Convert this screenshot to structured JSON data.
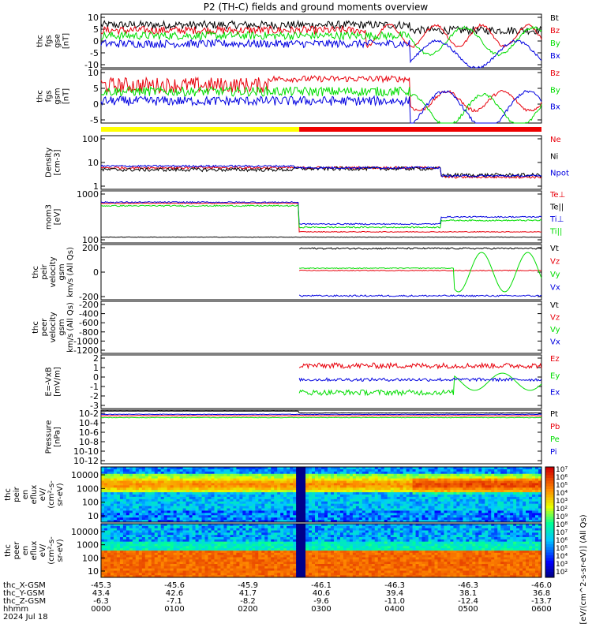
{
  "title": "P2 (TH-C) fields and ground moments overview",
  "colors": {
    "black": "#000000",
    "red": "#e8000b",
    "green": "#00dd00",
    "blue": "#0000e0",
    "yellow": "#ffff00",
    "barred": "#ee0000"
  },
  "chart_data": [
    {
      "type": "line",
      "id": "fgs_gse",
      "ylabel": [
        "thc",
        "fgs",
        "gse",
        "[nT]"
      ],
      "ylim": [
        -10,
        10
      ],
      "ticks": [
        "10",
        "5",
        "0",
        "-5",
        "-10"
      ],
      "legend": [
        "Bt",
        "Bz",
        "By",
        "Bx"
      ],
      "series_colors": [
        "black",
        "red",
        "green",
        "blue"
      ]
    },
    {
      "type": "line",
      "id": "fgs_gsm",
      "ylabel": [
        "thc",
        "fgs",
        "gsm",
        "[nT]"
      ],
      "ylim": [
        -7,
        10
      ],
      "ticks": [
        "10",
        "5",
        "0",
        "-5"
      ],
      "legend": [
        "Bz",
        "By",
        "Bx"
      ],
      "series_colors": [
        "red",
        "green",
        "blue"
      ]
    },
    {
      "type": "line",
      "id": "density",
      "ylabel": [
        "Density",
        "[cm-3]"
      ],
      "scale": "log",
      "ylim": [
        0.8,
        120
      ],
      "ticks": [
        "100",
        "10",
        "1"
      ],
      "legend": [
        "Ne",
        "Ni",
        "Npot"
      ],
      "series_colors": [
        "red",
        "black",
        "blue"
      ]
    },
    {
      "type": "line",
      "id": "temperature",
      "ylabel": [
        "mom3",
        "[eV]"
      ],
      "scale": "log",
      "ylim": [
        15,
        1500
      ],
      "ticks": [
        "1000",
        "100"
      ],
      "legend": [
        "Te⊥",
        "Te||",
        "Ti⊥",
        "Ti||"
      ],
      "series_colors": [
        "red",
        "black",
        "blue",
        "green"
      ]
    },
    {
      "type": "line",
      "id": "peir_velocity",
      "ylabel": [
        "thc",
        "peir",
        "velocity",
        "gsm",
        "km/s (All Qs)"
      ],
      "ylim": [
        -350,
        350
      ],
      "ticks": [
        "200",
        "0",
        "-200"
      ],
      "legend": [
        "Vt",
        "Vz",
        "Vy",
        "Vx"
      ],
      "series_colors": [
        "black",
        "red",
        "green",
        "blue"
      ]
    },
    {
      "type": "line",
      "id": "peer_velocity",
      "ylabel": [
        "thc",
        "peer",
        "velocity",
        "gsm",
        "km/s (All Qs)"
      ],
      "ylim": [
        -1300,
        0
      ],
      "ticks": [
        "-200",
        "-400",
        "-600",
        "-800",
        "-1000",
        "-1200"
      ],
      "legend": [
        "Vt",
        "Vz",
        "Vy",
        "Vx"
      ],
      "series_colors": [
        "black",
        "red",
        "green",
        "blue"
      ]
    },
    {
      "type": "line",
      "id": "efield",
      "ylabel": [
        "E=-VxB",
        "[mV/m]"
      ],
      "ylim": [
        -3,
        2
      ],
      "ticks": [
        "2",
        "1",
        "0",
        "-1",
        "-2",
        "-3"
      ],
      "legend": [
        "Ez",
        "Ey",
        "Ex"
      ],
      "series_colors": [
        "red",
        "green",
        "blue"
      ]
    },
    {
      "type": "line",
      "id": "pressure",
      "ylabel": [
        "Pressure",
        "[nPa]"
      ],
      "scale": "log",
      "ticks": [
        "10-2",
        "10-4",
        "10-6",
        "10-8",
        "10-10",
        "10-12"
      ],
      "legend": [
        "Pt",
        "Pb",
        "Pe",
        "Pi"
      ],
      "series_colors": [
        "black",
        "red",
        "green",
        "blue"
      ]
    },
    {
      "type": "heatmap",
      "id": "peir_eflux",
      "ylabel": [
        "thc",
        "peir",
        "en",
        "eflux",
        "eV/",
        "(cm²-s-",
        "sr-eV)"
      ],
      "ticks": [
        "10000",
        "1000",
        "100",
        "10"
      ]
    },
    {
      "type": "heatmap",
      "id": "peer_eflux",
      "ylabel": [
        "thc",
        "peer",
        "en",
        "eflux",
        "eV/",
        "(cm²-s-",
        "sr-eV)"
      ],
      "ticks": [
        "10000",
        "1000",
        "100",
        "10"
      ]
    }
  ],
  "colorbar": {
    "label": "[eV/(cm^2-s-sr-eV)] (All Qs)",
    "ticks": [
      "10⁷",
      "10⁶",
      "10⁵",
      "10⁴",
      "10³",
      "10²",
      "10⁹",
      "10⁸",
      "10⁷",
      "10⁶",
      "10⁵",
      "10⁴",
      "10³",
      "10²"
    ]
  },
  "xaxis": {
    "row_labels": [
      "thc_X-GSM",
      "thc_Y-GSM",
      "thc_Z-GSM",
      "hhmm",
      "2024 Jul 18"
    ],
    "x_gsm": [
      "-45.3",
      "-45.6",
      "-45.9",
      "-46.1",
      "-46.3",
      "-46.3",
      "-46.0"
    ],
    "y_gsm": [
      "43.4",
      "42.6",
      "41.7",
      "40.6",
      "39.4",
      "38.1",
      "36.8"
    ],
    "z_gsm": [
      "-6.3",
      "-7.1",
      "-8.2",
      "-9.6",
      "-11.0",
      "-12.4",
      "-13.7"
    ],
    "hhmm": [
      "0000",
      "0100",
      "0200",
      "0300",
      "0400",
      "0500",
      "0600"
    ]
  }
}
